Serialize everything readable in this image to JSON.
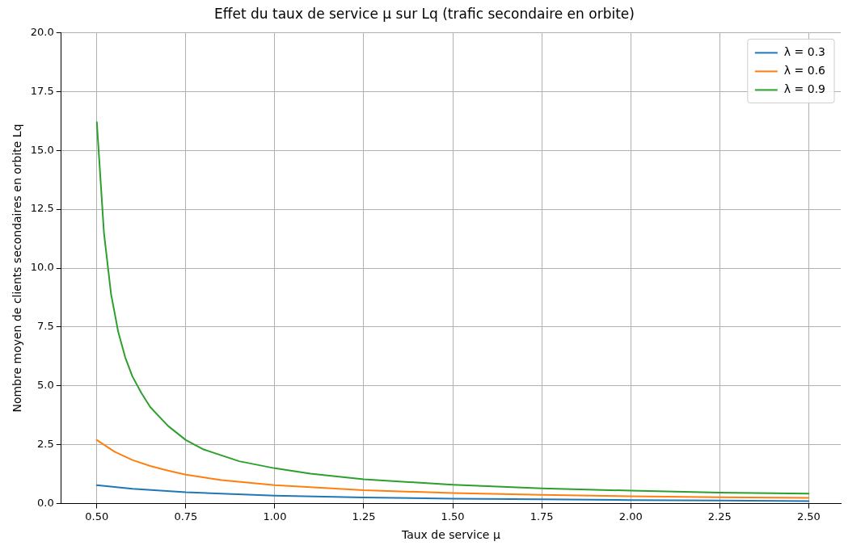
{
  "chart_data": {
    "type": "line",
    "title": "Effet du taux de service μ sur Lq (trafic secondaire en orbite)",
    "xlabel": "Taux de service μ",
    "ylabel": "Nombre moyen de clients secondaires en orbite Lq",
    "series": [
      {
        "name": "λ = 0.3",
        "color": "#1f77b4",
        "x": [
          0.5,
          0.6,
          0.75,
          1.0,
          1.25,
          1.5,
          1.75,
          2.0,
          2.25,
          2.5
        ],
        "values": [
          0.78,
          0.63,
          0.48,
          0.34,
          0.26,
          0.21,
          0.18,
          0.15,
          0.13,
          0.11
        ]
      },
      {
        "name": "λ = 0.6",
        "color": "#ff7f0e",
        "x": [
          0.5,
          0.55,
          0.6,
          0.65,
          0.7,
          0.75,
          0.85,
          1.0,
          1.25,
          1.5,
          1.75,
          2.0,
          2.25,
          2.5
        ],
        "values": [
          2.7,
          2.2,
          1.85,
          1.6,
          1.4,
          1.23,
          1.0,
          0.78,
          0.57,
          0.45,
          0.37,
          0.31,
          0.27,
          0.24
        ]
      },
      {
        "name": "λ = 0.9",
        "color": "#2ca02c",
        "x": [
          0.5,
          0.52,
          0.54,
          0.56,
          0.58,
          0.6,
          0.625,
          0.65,
          0.7,
          0.75,
          0.8,
          0.9,
          1.0,
          1.1,
          1.25,
          1.5,
          1.75,
          2.0,
          2.25,
          2.5
        ],
        "values": [
          16.2,
          11.5,
          8.9,
          7.3,
          6.2,
          5.4,
          4.7,
          4.1,
          3.3,
          2.7,
          2.3,
          1.8,
          1.5,
          1.27,
          1.03,
          0.8,
          0.65,
          0.55,
          0.47,
          0.42
        ]
      }
    ],
    "xlim": [
      0.4,
      2.59
    ],
    "xticks": [
      {
        "value": 0.5,
        "label": "0.50"
      },
      {
        "value": 0.75,
        "label": "0.75"
      },
      {
        "value": 1.0,
        "label": "1.00"
      },
      {
        "value": 1.25,
        "label": "1.25"
      },
      {
        "value": 1.5,
        "label": "1.50"
      },
      {
        "value": 1.75,
        "label": "1.75"
      },
      {
        "value": 2.0,
        "label": "2.00"
      },
      {
        "value": 2.25,
        "label": "2.25"
      },
      {
        "value": 2.5,
        "label": "2.50"
      }
    ],
    "ylim": [
      0,
      20
    ],
    "yticks": [
      {
        "value": 0,
        "label": "0.0"
      },
      {
        "value": 2.5,
        "label": "2.5"
      },
      {
        "value": 5,
        "label": "5.0"
      },
      {
        "value": 7.5,
        "label": "7.5"
      },
      {
        "value": 10,
        "label": "10.0"
      },
      {
        "value": 12.5,
        "label": "12.5"
      },
      {
        "value": 15,
        "label": "15.0"
      },
      {
        "value": 17.5,
        "label": "17.5"
      },
      {
        "value": 20,
        "label": "20.0"
      }
    ],
    "grid": true,
    "legend": "top right",
    "marker": "none",
    "line_style": "solid"
  }
}
